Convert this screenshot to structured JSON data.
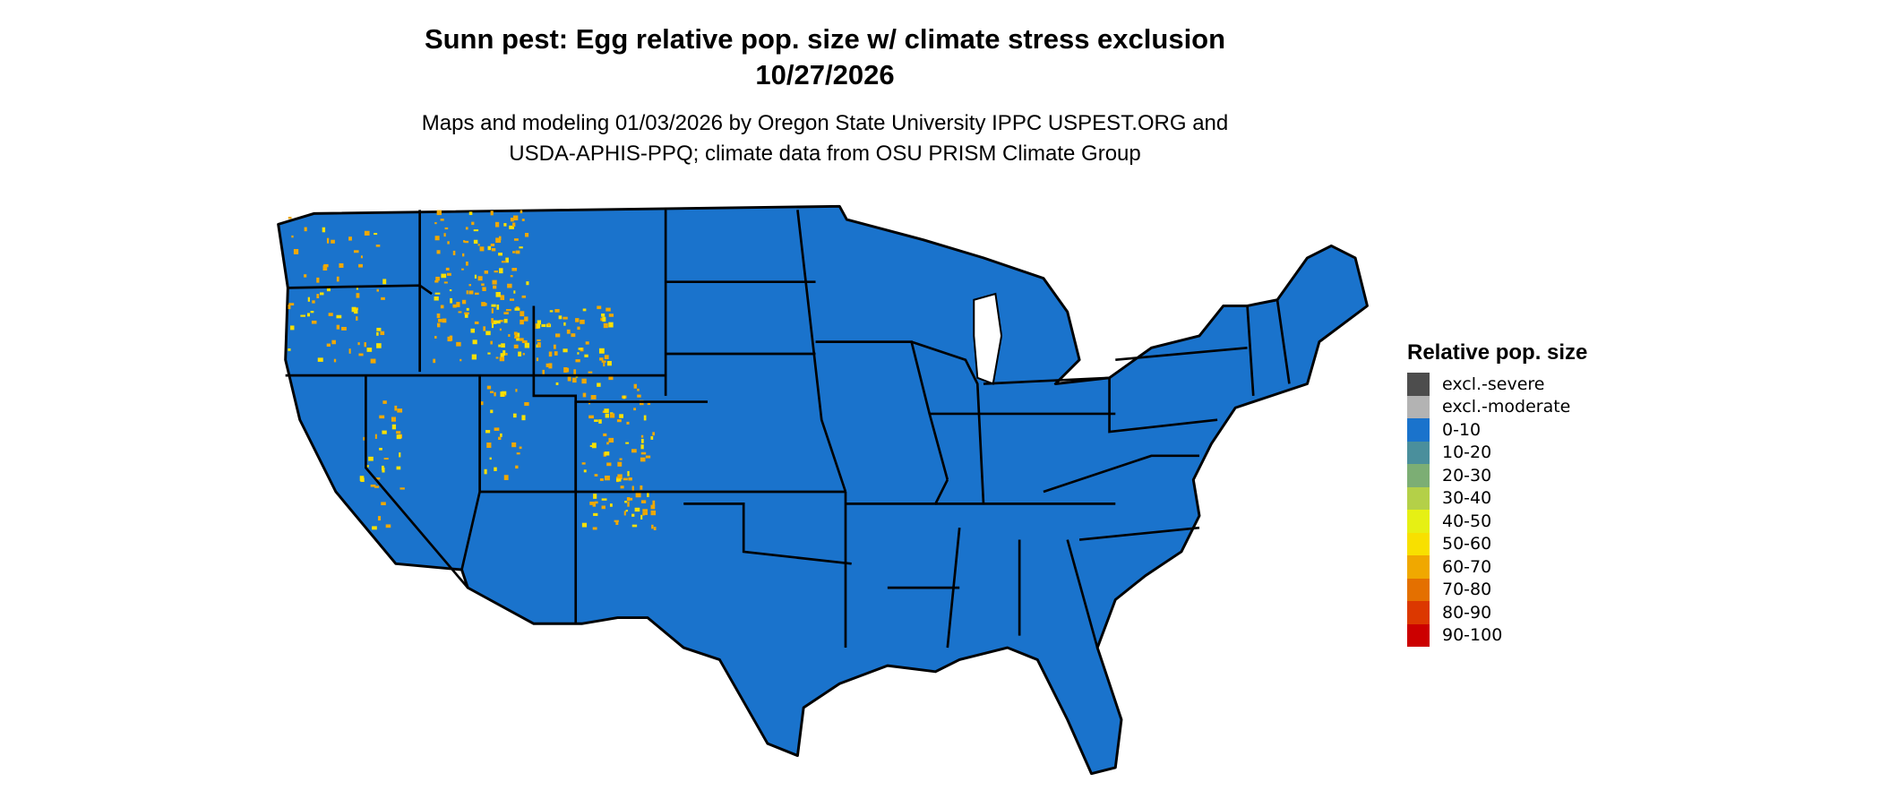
{
  "title": {
    "line1": "Sunn pest: Egg relative pop. size w/ climate stress exclusion",
    "line2": "10/27/2026"
  },
  "subtitle": {
    "line1": "Maps and modeling 01/03/2026 by Oregon State University IPPC USPEST.ORG and",
    "line2": "USDA-APHIS-PPQ; climate data from OSU PRISM Climate Group"
  },
  "map": {
    "fill_color": "#1a73cc",
    "border_color": "#000000",
    "hotspot_color": "#f0a800",
    "region": "Contiguous United States"
  },
  "legend": {
    "title": "Relative pop. size",
    "items": [
      {
        "label": "excl.-severe",
        "color": "#4d4d4d"
      },
      {
        "label": "excl.-moderate",
        "color": "#b3b3b3"
      },
      {
        "label": "0-10",
        "color": "#1a73cc"
      },
      {
        "label": "10-20",
        "color": "#4a8f9c"
      },
      {
        "label": "20-30",
        "color": "#7cae74"
      },
      {
        "label": "30-40",
        "color": "#b4d048"
      },
      {
        "label": "40-50",
        "color": "#e6f014"
      },
      {
        "label": "50-60",
        "color": "#f8e000"
      },
      {
        "label": "60-70",
        "color": "#f0a800"
      },
      {
        "label": "70-80",
        "color": "#e47000"
      },
      {
        "label": "80-90",
        "color": "#dc3800"
      },
      {
        "label": "90-100",
        "color": "#cc0000"
      }
    ]
  }
}
